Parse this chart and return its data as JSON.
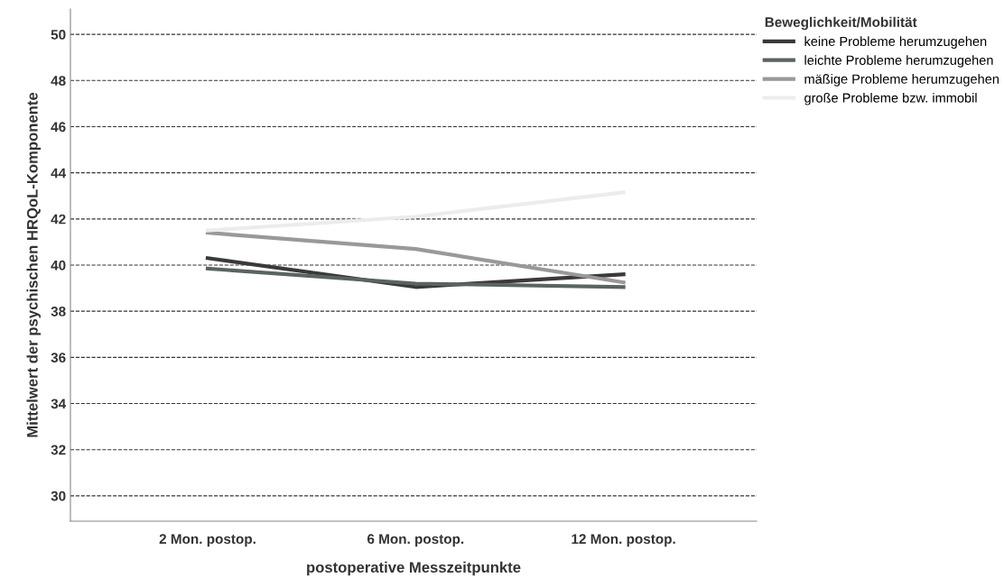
{
  "chart_data": {
    "type": "line",
    "xlabel": "postoperative Messzeitpunkte",
    "ylabel": "Mittelwert der psychischen HRQoL-Komponente",
    "legend_title": "Beweglichkeit/Mobilität",
    "categories": [
      "2 Mon. postop.",
      "6 Mon. postop.",
      "12 Mon. postop."
    ],
    "series": [
      {
        "name": "keine Probleme herumzugehen",
        "color": "#3a3a3a",
        "values": [
          40.3,
          39.05,
          39.6
        ]
      },
      {
        "name": "leichte Probleme herumzugehen",
        "color": "#5a6462",
        "values": [
          39.85,
          39.2,
          39.05
        ]
      },
      {
        "name": "mäßige Probleme herumzugehen",
        "color": "#9a989a",
        "values": [
          41.4,
          40.7,
          39.25
        ]
      },
      {
        "name": "große Probleme bzw. immobil",
        "color": "#ececec",
        "values": [
          41.5,
          42.1,
          43.15
        ]
      }
    ],
    "ylim": [
      28.9,
      51.1
    ],
    "yticks": [
      30,
      32,
      34,
      36,
      38,
      40,
      42,
      44,
      46,
      48,
      50
    ],
    "grid": "y",
    "legend": "top right",
    "marker": "none",
    "line_style": "solid"
  }
}
